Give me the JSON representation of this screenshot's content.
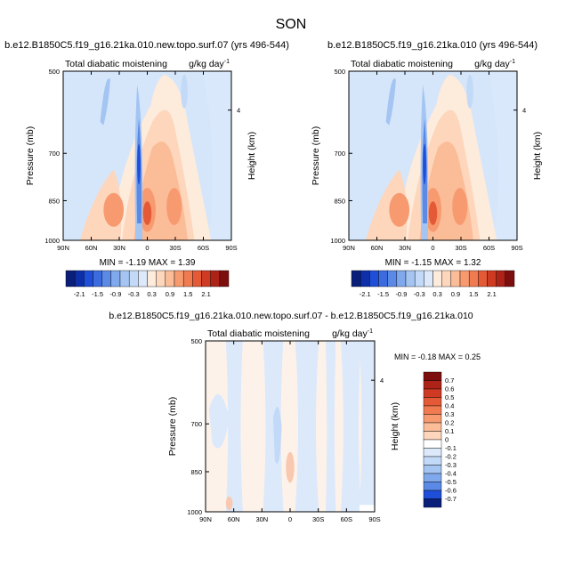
{
  "figure": {
    "title": "SON"
  },
  "colors": {
    "background_field": "#d5e6fb",
    "cool_scale": [
      "#dbe9fb",
      "#c2d9f7",
      "#a4c5f2",
      "#7fa9ec",
      "#5b8ae6",
      "#3c6be0",
      "#1f4fd8",
      "#0d2fa8",
      "#0a1f7a"
    ],
    "warm_scale": [
      "#fdebdc",
      "#fdd6bc",
      "#fbbc98",
      "#f79a70",
      "#f07b50",
      "#e45a36",
      "#cf3a22",
      "#ad2318",
      "#7d0e0e"
    ]
  },
  "chart_data": [
    {
      "type": "heatmap",
      "title": "b.e12.B1850C5.f19_g16.21ka.010.new.topo.surf.07 (yrs 496-544)",
      "subtitle_left": "Total diabatic moistening",
      "subtitle_right": "g/kg day",
      "subtitle_right_exp": "-1",
      "ylabel": "Pressure (mb)",
      "ylabel_right": "Height (km)",
      "right_ticks": [
        "4"
      ],
      "x_ticks": [
        "90N",
        "60N",
        "30N",
        "0",
        "30S",
        "60S",
        "90S"
      ],
      "y_ticks": [
        "500",
        "700",
        "850",
        "1000"
      ],
      "xlim": [
        90,
        -90
      ],
      "ylim": [
        500,
        1000
      ],
      "stats_text": "MIN =  -1.19  MAX =   1.39",
      "colorbar": {
        "orientation": "horizontal",
        "levels": [
          "-2.1",
          "-1.5",
          "-0.9",
          "-0.3",
          "0.3",
          "0.9",
          "1.5",
          "2.1"
        ]
      }
    },
    {
      "type": "heatmap",
      "title": "b.e12.B1850C5.f19_g16.21ka.010 (yrs 496-544)",
      "subtitle_left": "Total diabatic moistening",
      "subtitle_right": "g/kg day",
      "subtitle_right_exp": "-1",
      "ylabel": "Pressure (mb)",
      "ylabel_right": "Height (km)",
      "right_ticks": [
        "4"
      ],
      "x_ticks": [
        "90N",
        "60N",
        "30N",
        "0",
        "30S",
        "60S",
        "90S"
      ],
      "y_ticks": [
        "500",
        "700",
        "850",
        "1000"
      ],
      "xlim": [
        90,
        -90
      ],
      "ylim": [
        500,
        1000
      ],
      "stats_text": "MIN =  -1.15  MAX =   1.32",
      "colorbar": {
        "orientation": "horizontal",
        "levels": [
          "-2.1",
          "-1.5",
          "-0.9",
          "-0.3",
          "0.3",
          "0.9",
          "1.5",
          "2.1"
        ]
      }
    },
    {
      "type": "heatmap",
      "title": "b.e12.B1850C5.f19_g16.21ka.010.new.topo.surf.07 - b.e12.B1850C5.f19_g16.21ka.010",
      "subtitle_left": "Total diabatic moistening",
      "subtitle_right": "g/kg day",
      "subtitle_right_exp": "-1",
      "ylabel": "Pressure (mb)",
      "ylabel_right": "Height (km)",
      "right_ticks": [
        "4"
      ],
      "x_ticks": [
        "90N",
        "60N",
        "30N",
        "0",
        "30S",
        "60S",
        "90S"
      ],
      "y_ticks": [
        "500",
        "700",
        "850",
        "1000"
      ],
      "xlim": [
        90,
        -90
      ],
      "ylim": [
        500,
        1000
      ],
      "stats_text": "MIN =  -0.18  MAX =   0.25",
      "colorbar": {
        "orientation": "vertical",
        "levels": [
          "0.7",
          "0.6",
          "0.5",
          "0.4",
          "0.3",
          "0.2",
          "0.1",
          "0",
          "-0.1",
          "-0.2",
          "-0.3",
          "-0.4",
          "-0.5",
          "-0.6",
          "-0.7"
        ]
      }
    }
  ]
}
